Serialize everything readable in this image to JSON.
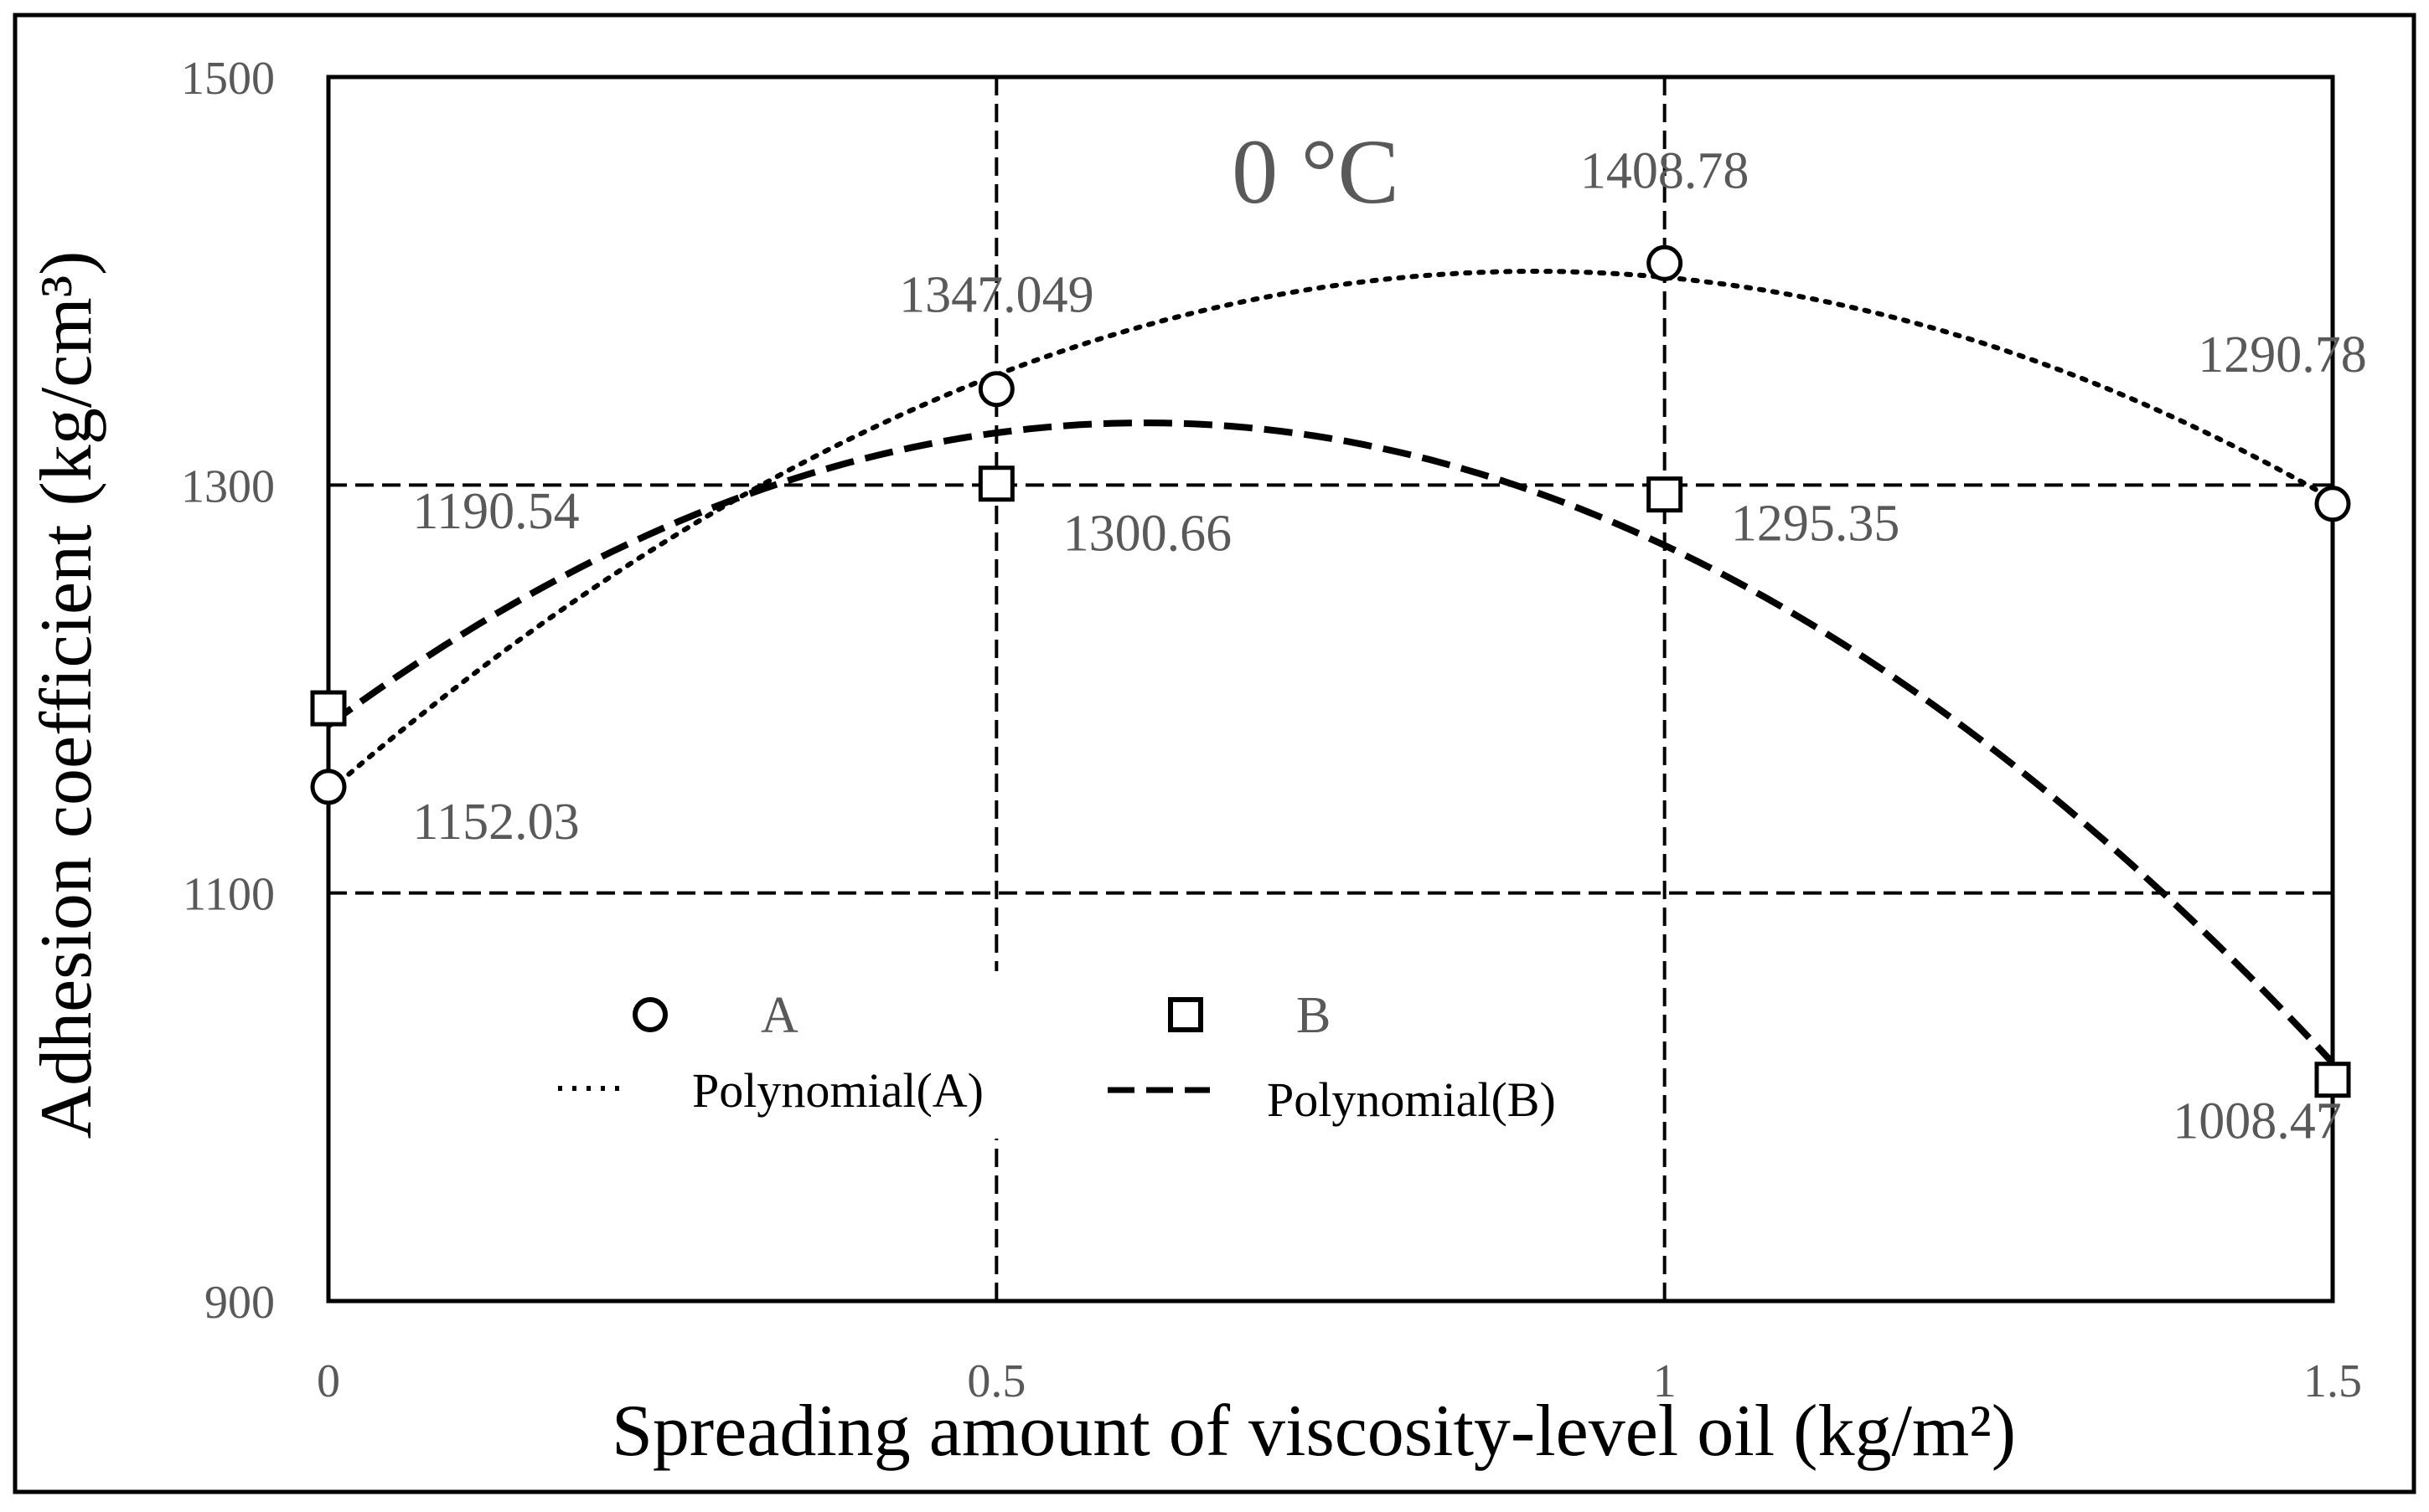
{
  "chart_data": {
    "type": "scatter",
    "title": "0 °C",
    "xlabel": "Spreading amount of viscosity-level  oil (kg/m²)",
    "ylabel": "Adhesion coefficient  (kg/cm³)",
    "xlim": [
      0,
      1.5
    ],
    "ylim": [
      900,
      1500
    ],
    "xticks": [
      "0",
      "0.5",
      "1",
      "1.5"
    ],
    "yticks": [
      "900",
      "1100",
      "1300",
      "1500"
    ],
    "grid": true,
    "legend_position": "bottom-center",
    "x": [
      0,
      0.5,
      1,
      1.5
    ],
    "series": [
      {
        "name": "A",
        "marker": "circle",
        "values": [
          1152.03,
          1347.049,
          1408.78,
          1290.78
        ],
        "labels": [
          "1152.03",
          "1347.049",
          "1408.78",
          "1290.78"
        ],
        "trendline": "Polynomial(A)",
        "trendline_style": "dotted"
      },
      {
        "name": "B",
        "marker": "square",
        "values": [
          1190.54,
          1300.66,
          1295.35,
          1008.47
        ],
        "labels": [
          "1190.54",
          "1300.66",
          "1295.35",
          "1008.47"
        ],
        "trendline": "Polynomial(B)",
        "trendline_style": "dashed"
      }
    ]
  }
}
